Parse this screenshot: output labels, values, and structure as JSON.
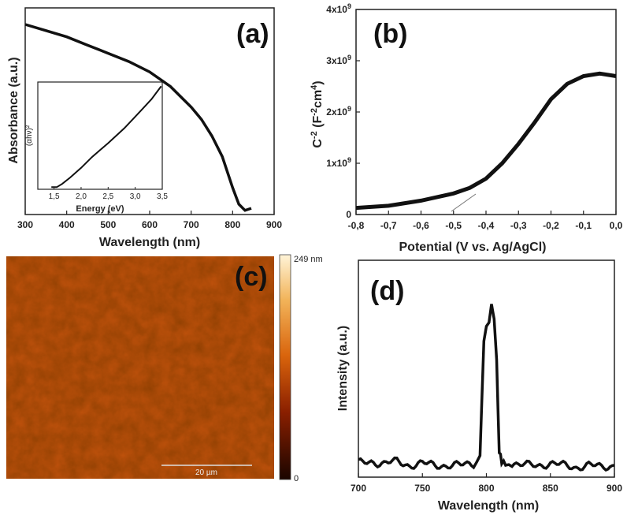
{
  "chart_data": [
    {
      "panel": "(a)",
      "type": "line",
      "xlabel": "Wavelength (nm)",
      "ylabel": "Absorbance (a.u.)",
      "xlim": [
        300,
        900
      ],
      "ylim": [
        0,
        1
      ],
      "x_ticks": [
        "300",
        "400",
        "500",
        "600",
        "700",
        "800",
        "900"
      ],
      "series": [
        {
          "name": "absorbance",
          "x": [
            300,
            350,
            400,
            450,
            500,
            550,
            600,
            650,
            700,
            725,
            750,
            775,
            800,
            815,
            830,
            845
          ],
          "y": [
            0.92,
            0.89,
            0.86,
            0.82,
            0.78,
            0.74,
            0.69,
            0.62,
            0.52,
            0.46,
            0.38,
            0.28,
            0.13,
            0.05,
            0.02,
            0.03
          ]
        }
      ],
      "inset": {
        "type": "line",
        "xlabel": "Energy (eV)",
        "ylabel": "(αhν)²",
        "xlim": [
          1.2,
          3.5
        ],
        "ylim": [
          0,
          1
        ],
        "x_ticks": [
          "1,5",
          "2,0",
          "2,5",
          "3,0",
          "3,5"
        ],
        "series": [
          {
            "name": "tauc",
            "x": [
              1.45,
              1.55,
              1.65,
              1.8,
              2.0,
              2.2,
              2.5,
              2.8,
              3.1,
              3.3,
              3.48
            ],
            "y": [
              0.02,
              0.02,
              0.05,
              0.11,
              0.2,
              0.3,
              0.43,
              0.57,
              0.73,
              0.84,
              0.96
            ]
          }
        ]
      }
    },
    {
      "panel": "(b)",
      "type": "line",
      "xlabel": "Potential  (V vs. Ag/AgCl)",
      "ylabel": "C-2 (F-2cm4)",
      "xlim": [
        -0.8,
        0.0
      ],
      "ylim": [
        0,
        4000000000
      ],
      "x_ticks": [
        "-0,8",
        "-0,7",
        "-0,6",
        "-0,5",
        "-0,4",
        "-0,3",
        "-0,2",
        "-0,1",
        "0,0"
      ],
      "y_ticks": [
        "0",
        "1x10^9",
        "2x10^9",
        "3x10^9",
        "4x10^9"
      ],
      "series": [
        {
          "name": "mott-schottky",
          "x": [
            -0.8,
            -0.7,
            -0.6,
            -0.5,
            -0.45,
            -0.4,
            -0.35,
            -0.3,
            -0.25,
            -0.2,
            -0.15,
            -0.1,
            -0.05,
            0.0
          ],
          "y": [
            130000000,
            170000000,
            270000000,
            410000000,
            520000000,
            700000000,
            1000000000,
            1380000000,
            1800000000,
            2250000000,
            2550000000,
            2700000000,
            2750000000,
            2700000000
          ]
        }
      ]
    },
    {
      "panel": "(c)",
      "type": "heatmap",
      "colorbar_max": "249 nm",
      "colorbar_min": "0",
      "scale_bar": "20 µm"
    },
    {
      "panel": "(d)",
      "type": "line",
      "xlabel": "Wavelength (nm)",
      "ylabel": "Intensity (a.u.)",
      "xlim": [
        700,
        900
      ],
      "ylim": [
        0,
        1
      ],
      "x_ticks": [
        "700",
        "750",
        "800",
        "850",
        "900"
      ],
      "series": [
        {
          "name": "PL",
          "x": [
            700,
            710,
            720,
            730,
            740,
            750,
            760,
            770,
            780,
            790,
            795,
            798,
            800,
            802,
            804,
            806,
            808,
            810,
            812,
            815,
            820,
            830,
            840,
            850,
            860,
            870,
            880,
            890,
            900
          ],
          "y": [
            0.04,
            0.05,
            0.04,
            0.05,
            0.03,
            0.04,
            0.03,
            0.03,
            0.03,
            0.04,
            0.08,
            0.7,
            0.78,
            0.8,
            0.9,
            0.82,
            0.6,
            0.1,
            0.04,
            0.03,
            0.04,
            0.03,
            0.03,
            0.04,
            0.03,
            0.02,
            0.03,
            0.02,
            0.03
          ]
        }
      ]
    }
  ]
}
